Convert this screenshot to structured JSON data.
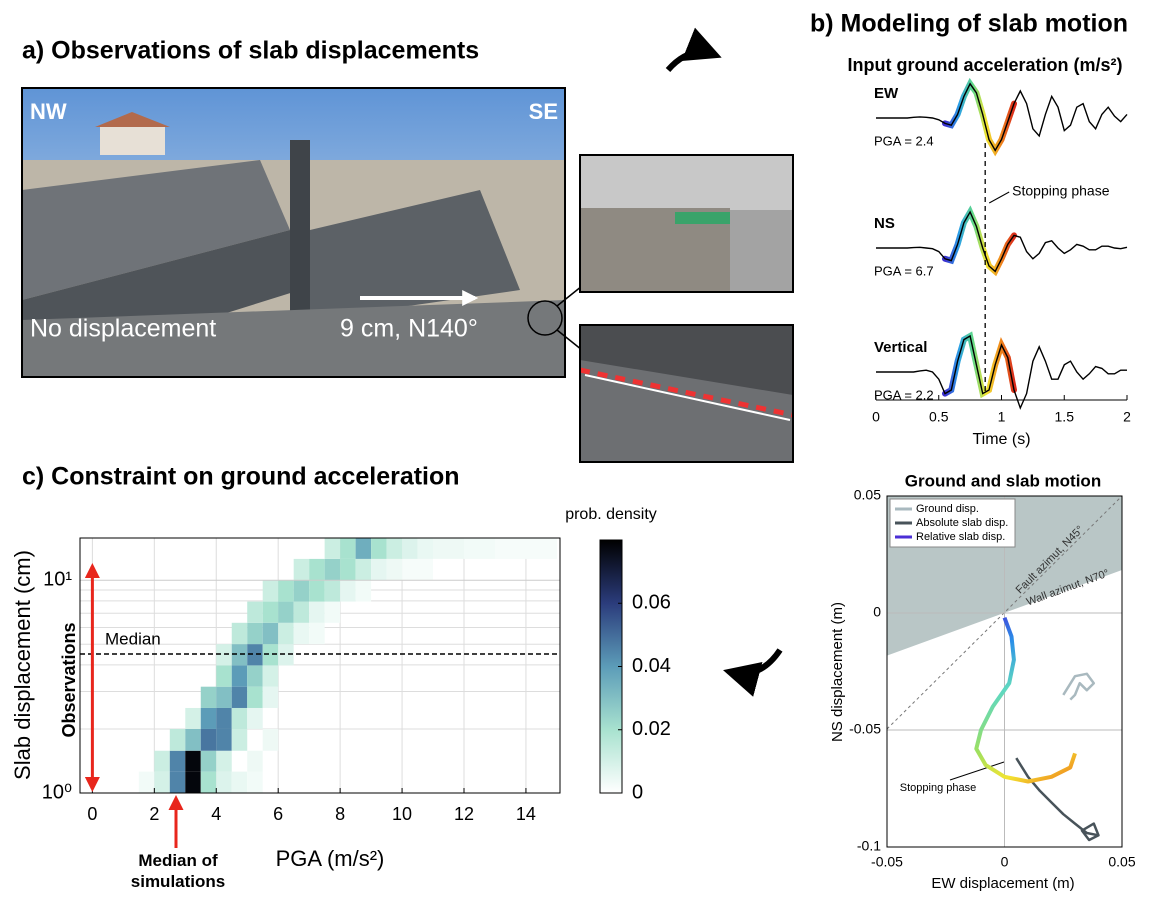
{
  "panel_a": {
    "title": "a) Observations of slab displacements",
    "photo_labels": {
      "nw": "NW",
      "se": "SE",
      "left": "No displacement",
      "right": "9 cm, N140°"
    }
  },
  "chart_data": [
    {
      "type": "line",
      "title": "b) Modeling of slab motion",
      "subtitle": "Input ground acceleration (m/s²)",
      "x": [
        0,
        0.05,
        0.1,
        0.15,
        0.2,
        0.25,
        0.3,
        0.35,
        0.4,
        0.45,
        0.5,
        0.55,
        0.6,
        0.65,
        0.7,
        0.75,
        0.8,
        0.85,
        0.9,
        0.95,
        1,
        1.05,
        1.1,
        1.15,
        1.2,
        1.25,
        1.3,
        1.35,
        1.4,
        1.45,
        1.5,
        1.55,
        1.6,
        1.65,
        1.7,
        1.75,
        1.8,
        1.85,
        1.9,
        1.95,
        2
      ],
      "xlim": [
        0,
        2
      ],
      "xticks": [
        0,
        0.5,
        1,
        1.5,
        2
      ],
      "xlabel": "Time (s)",
      "series": [
        {
          "name": "EW",
          "annotation": "PGA = 2.4",
          "color": "#000000",
          "values": [
            0,
            0,
            0,
            0,
            0,
            0,
            0.02,
            0.03,
            0.02,
            0,
            -0.05,
            -0.15,
            -0.2,
            0.1,
            0.6,
            0.95,
            0.7,
            0.1,
            -0.6,
            -0.9,
            -0.6,
            -0.1,
            0.4,
            0.75,
            0.4,
            -0.3,
            -0.5,
            0.1,
            0.6,
            0.3,
            -0.35,
            -0.2,
            0.3,
            0.4,
            -0.1,
            -0.3,
            0.1,
            0.3,
            0.05,
            -0.1,
            0.1
          ]
        },
        {
          "name": "NS",
          "annotation": "PGA = 6.7",
          "color": "#000000",
          "values": [
            0,
            0,
            0,
            0,
            0,
            0,
            0.01,
            0.02,
            0,
            -0.02,
            -0.1,
            -0.3,
            -0.35,
            0.1,
            0.7,
            1.0,
            0.6,
            0,
            -0.5,
            -0.65,
            -0.3,
            0.1,
            0.35,
            0.3,
            -0.1,
            -0.3,
            -0.15,
            0.15,
            0.2,
            0,
            -0.15,
            -0.05,
            0.1,
            0.05,
            -0.05,
            -0.05,
            0.05,
            0.05,
            0,
            -0.02,
            0.02
          ]
        },
        {
          "name": "Vertical",
          "annotation": "PGA = 2.2",
          "color": "#000000",
          "values": [
            0,
            0,
            0,
            0,
            0,
            0,
            0,
            0.03,
            0.05,
            0,
            -0.2,
            -0.6,
            -0.5,
            0.3,
            0.9,
            1.0,
            0.2,
            -0.6,
            -0.5,
            0.2,
            0.75,
            0.4,
            -0.5,
            -1.0,
            -0.6,
            0.3,
            0.7,
            0.3,
            -0.2,
            -0.2,
            0.2,
            0.3,
            0,
            -0.2,
            -0.05,
            0.15,
            0.1,
            -0.05,
            -0.05,
            0.05,
            0.05
          ]
        }
      ],
      "highlight_range": [
        0.55,
        1.1
      ],
      "highlight_colors": [
        "#3b2fd0",
        "#2b9fe6",
        "#5fd88a",
        "#f2e431",
        "#f08a1c",
        "#d92a1a"
      ],
      "stopping_phase": {
        "x": 0.87,
        "label": "Stopping phase"
      }
    },
    {
      "type": "trajectory",
      "title": "Ground and slab motion",
      "xlabel": "EW displacement (m)",
      "ylabel": "NS displacement (m)",
      "xlim": [
        -0.05,
        0.05
      ],
      "ylim": [
        -0.1,
        0.05
      ],
      "xticks": [
        -0.05,
        0,
        0.05
      ],
      "yticks": [
        -0.1,
        -0.05,
        0,
        0.05
      ],
      "grid": true,
      "legend": "upper left",
      "series": [
        {
          "name": "Ground disp.",
          "color": "#a9b9bf",
          "x": [
            0.025,
            0.03,
            0.035,
            0.038,
            0.035,
            0.032,
            0.03,
            0.028
          ],
          "y": [
            -0.035,
            -0.027,
            -0.026,
            -0.03,
            -0.033,
            -0.03,
            -0.035,
            -0.037
          ]
        },
        {
          "name": "Absolute slab disp.",
          "color": "#48535a",
          "x": [
            0.005,
            0.01,
            0.015,
            0.02,
            0.025,
            0.03,
            0.035,
            0.04,
            0.038,
            0.033,
            0.036,
            0.04
          ],
          "y": [
            -0.062,
            -0.07,
            -0.076,
            -0.081,
            -0.086,
            -0.09,
            -0.094,
            -0.095,
            -0.09,
            -0.093,
            -0.097,
            -0.095
          ]
        },
        {
          "name": "Relative slab disp.",
          "color": "#5a3fe0",
          "colors": [
            "#4b2fd6",
            "#2a8fe8",
            "#5fd8c0",
            "#9de060",
            "#f2e431",
            "#f07a1c"
          ],
          "x": [
            0,
            0.003,
            0.004,
            0.002,
            -0.005,
            -0.01,
            -0.012,
            -0.008,
            0,
            0.01,
            0.02,
            0.028,
            0.03
          ],
          "y": [
            -0.002,
            -0.01,
            -0.02,
            -0.03,
            -0.04,
            -0.05,
            -0.058,
            -0.065,
            -0.07,
            -0.072,
            -0.07,
            -0.066,
            -0.06
          ]
        }
      ],
      "annotations": {
        "fault": "Fault azimut, N45°",
        "wall": "Wall azimut, N70°",
        "stopping": "Stopping phase"
      }
    },
    {
      "type": "heatmap",
      "title": "c) Constraint on ground acceleration",
      "xlabel": "PGA (m/s²)",
      "ylabel": "Slab displacement (cm)",
      "xlim": [
        -0.4,
        15.1
      ],
      "ylim": [
        1,
        15.8
      ],
      "log_y": true,
      "xticks": [
        0,
        2,
        4,
        6,
        8,
        10,
        12,
        14
      ],
      "yticks": [
        {
          "value": 1,
          "label": "10⁰"
        },
        {
          "value": 10,
          "label": "10¹"
        }
      ],
      "yminorticks": [
        2,
        3,
        4,
        5,
        6,
        7,
        8,
        9
      ],
      "grid": true,
      "cells": [
        [
          1.5,
          2,
          1,
          1.26,
          0.003
        ],
        [
          2,
          2.5,
          1,
          1.26,
          0.01
        ],
        [
          2.5,
          3,
          1,
          1.26,
          0.045
        ],
        [
          3,
          3.5,
          1,
          1.26,
          0.078
        ],
        [
          3.5,
          4,
          1,
          1.26,
          0.02
        ],
        [
          4,
          4.5,
          1,
          1.26,
          0.008
        ],
        [
          4.5,
          5,
          1,
          1.26,
          0.005
        ],
        [
          5,
          5.5,
          1,
          1.26,
          0.003
        ],
        [
          2,
          2.5,
          1.26,
          1.58,
          0.012
        ],
        [
          2.5,
          3,
          1.26,
          1.58,
          0.045
        ],
        [
          3,
          3.5,
          1.26,
          1.58,
          0.078
        ],
        [
          3.5,
          4,
          1.26,
          1.58,
          0.025
        ],
        [
          4,
          4.5,
          1.26,
          1.58,
          0.01
        ],
        [
          5,
          5.5,
          1.26,
          1.58,
          0.004
        ],
        [
          2.5,
          3,
          1.58,
          2,
          0.015
        ],
        [
          3,
          3.5,
          1.58,
          2,
          0.03
        ],
        [
          3.5,
          4,
          1.58,
          2,
          0.048
        ],
        [
          4,
          4.5,
          1.58,
          2,
          0.045
        ],
        [
          4.5,
          5,
          1.58,
          2,
          0.012
        ],
        [
          5.5,
          6,
          1.58,
          2,
          0.004
        ],
        [
          3,
          3.5,
          2,
          2.51,
          0.01
        ],
        [
          3.5,
          4,
          2,
          2.51,
          0.04
        ],
        [
          4,
          4.5,
          2,
          2.51,
          0.045
        ],
        [
          4.5,
          5,
          2,
          2.51,
          0.015
        ],
        [
          5,
          5.5,
          2,
          2.51,
          0.006
        ],
        [
          3.5,
          4,
          2.51,
          3.16,
          0.025
        ],
        [
          4,
          4.5,
          2.51,
          3.16,
          0.03
        ],
        [
          4.5,
          5,
          2.51,
          3.16,
          0.045
        ],
        [
          5,
          5.5,
          2.51,
          3.16,
          0.02
        ],
        [
          5.5,
          6,
          2.51,
          3.16,
          0.006
        ],
        [
          4,
          4.5,
          3.16,
          3.98,
          0.02
        ],
        [
          4.5,
          5,
          3.16,
          3.98,
          0.04
        ],
        [
          5,
          5.5,
          3.16,
          3.98,
          0.025
        ],
        [
          5.5,
          6,
          3.16,
          3.98,
          0.01
        ],
        [
          4,
          4.5,
          3.98,
          5.01,
          0.01
        ],
        [
          4.5,
          5,
          3.98,
          5.01,
          0.03
        ],
        [
          5,
          5.5,
          3.98,
          5.01,
          0.045
        ],
        [
          5.5,
          6,
          3.98,
          5.01,
          0.02
        ],
        [
          6,
          6.5,
          3.98,
          5.01,
          0.008
        ],
        [
          4.5,
          5,
          5.01,
          6.31,
          0.015
        ],
        [
          5,
          5.5,
          5.01,
          6.31,
          0.025
        ],
        [
          5.5,
          6,
          5.01,
          6.31,
          0.03
        ],
        [
          6,
          6.5,
          5.01,
          6.31,
          0.012
        ],
        [
          6.5,
          7,
          5.01,
          6.31,
          0.005
        ],
        [
          7,
          7.5,
          5.01,
          6.31,
          0.003
        ],
        [
          5,
          5.5,
          6.31,
          7.94,
          0.015
        ],
        [
          5.5,
          6,
          6.31,
          7.94,
          0.02
        ],
        [
          6,
          6.5,
          6.31,
          7.94,
          0.025
        ],
        [
          6.5,
          7,
          6.31,
          7.94,
          0.015
        ],
        [
          7,
          7.5,
          6.31,
          7.94,
          0.006
        ],
        [
          7.5,
          8,
          6.31,
          7.94,
          0.003
        ],
        [
          5.5,
          6,
          7.94,
          10,
          0.012
        ],
        [
          6,
          6.5,
          7.94,
          10,
          0.02
        ],
        [
          6.5,
          7,
          7.94,
          10,
          0.025
        ],
        [
          7,
          7.5,
          7.94,
          10,
          0.02
        ],
        [
          7.5,
          8,
          7.94,
          10,
          0.015
        ],
        [
          8,
          8.5,
          7.94,
          10,
          0.006
        ],
        [
          8.5,
          9,
          7.94,
          10,
          0.003
        ],
        [
          6.5,
          7,
          10,
          12.6,
          0.012
        ],
        [
          7,
          7.5,
          10,
          12.6,
          0.02
        ],
        [
          7.5,
          8,
          10,
          12.6,
          0.025
        ],
        [
          8,
          8.5,
          10,
          12.6,
          0.02
        ],
        [
          8.5,
          9,
          10,
          12.6,
          0.012
        ],
        [
          9,
          9.5,
          10,
          12.6,
          0.006
        ],
        [
          9.5,
          10,
          10,
          12.6,
          0.004
        ],
        [
          10,
          11,
          10,
          12.6,
          0.002
        ],
        [
          7.5,
          8,
          12.6,
          15.8,
          0.012
        ],
        [
          8,
          8.5,
          12.6,
          15.8,
          0.02
        ],
        [
          8.5,
          9,
          12.6,
          15.8,
          0.035
        ],
        [
          9,
          9.5,
          12.6,
          15.8,
          0.02
        ],
        [
          9.5,
          10,
          12.6,
          15.8,
          0.012
        ],
        [
          10,
          10.5,
          12.6,
          15.8,
          0.008
        ],
        [
          10.5,
          11,
          12.6,
          15.8,
          0.005
        ],
        [
          11,
          12,
          12.6,
          15.8,
          0.004
        ],
        [
          12,
          13,
          12.6,
          15.8,
          0.003
        ],
        [
          13,
          15,
          12.6,
          15.8,
          0.002
        ]
      ],
      "colorbar": {
        "label": "prob. density",
        "lim": [
          0,
          0.08
        ],
        "ticks": [
          0,
          0.02,
          0.04,
          0.06
        ],
        "colors": [
          "#ffffff",
          "#a8e2cf",
          "#5c9cb8",
          "#2b3c7c",
          "#000000"
        ]
      },
      "median": {
        "value": 4.5,
        "label": "Median"
      },
      "median_pga": 2.7,
      "observations_label": "Observations",
      "median_pga_label": "Median of simulations"
    }
  ]
}
